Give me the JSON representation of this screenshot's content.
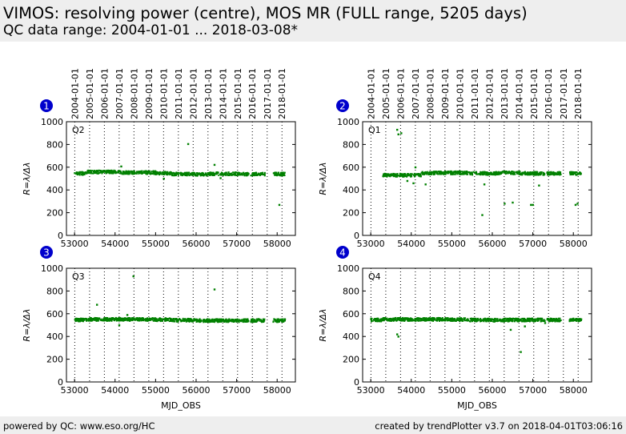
{
  "header": {
    "title": "VIMOS: resolving power (centre), MOS MR (FULL range, 5205 days)",
    "subtitle": "QC data range: 2004-01-01 ... 2018-03-08*"
  },
  "footer": {
    "left": "powered by QC: www.eso.org/HC",
    "right": "created by trendPlotter v3.7 on 2018-04-01T03:06:16"
  },
  "colors": {
    "data": "#008000",
    "badge": "#0000cc",
    "header_bg": "#eeeeee"
  },
  "chart_data": [
    {
      "type": "scatter",
      "panel": "1",
      "label": "Q2",
      "ylabel": "R=λ/Δλ",
      "xlabel": "",
      "xlim": [
        52800,
        58450
      ],
      "ylim": [
        0,
        1000
      ],
      "xticks": [
        53000,
        54000,
        55000,
        56000,
        57000,
        58000
      ],
      "yticks": [
        0,
        200,
        400,
        600,
        800,
        1000
      ],
      "date_ticks": [
        "2004-01-01",
        "2005-01-01",
        "2006-01-01",
        "2007-01-01",
        "2008-01-01",
        "2009-01-01",
        "2010-01-01",
        "2011-01-01",
        "2012-01-01",
        "2013-01-01",
        "2014-01-01",
        "2015-01-01",
        "2016-01-01",
        "2017-01-01",
        "2018-01-01"
      ],
      "date_mjd": [
        53005,
        53371,
        53736,
        54101,
        54466,
        54832,
        55197,
        55562,
        55927,
        56293,
        56658,
        57023,
        57388,
        57754,
        58119
      ],
      "bands": [
        [
          53000,
          53300,
          545
        ],
        [
          53300,
          54150,
          558
        ],
        [
          54150,
          54500,
          553
        ],
        [
          54500,
          55000,
          553
        ],
        [
          55000,
          55400,
          548
        ],
        [
          55400,
          55950,
          540
        ],
        [
          55950,
          56300,
          537
        ],
        [
          56300,
          57100,
          542
        ],
        [
          57100,
          57300,
          540
        ],
        [
          57350,
          57700,
          540
        ],
        [
          57900,
          58200,
          540
        ]
      ],
      "outliers": [
        [
          55800,
          805
        ],
        [
          54150,
          608
        ],
        [
          56450,
          622
        ],
        [
          55200,
          500
        ],
        [
          56600,
          505
        ],
        [
          58050,
          270
        ]
      ]
    },
    {
      "type": "scatter",
      "panel": "2",
      "label": "Q1",
      "ylabel": "R=λ/Δλ",
      "xlabel": "",
      "xlim": [
        52800,
        58450
      ],
      "ylim": [
        0,
        1000
      ],
      "xticks": [
        53000,
        54000,
        55000,
        56000,
        57000,
        58000
      ],
      "yticks": [
        0,
        200,
        400,
        600,
        800,
        1000
      ],
      "date_ticks": [
        "2004-01-01",
        "2005-01-01",
        "2006-01-01",
        "2007-01-01",
        "2008-01-01",
        "2009-01-01",
        "2010-01-01",
        "2011-01-01",
        "2012-01-01",
        "2013-01-01",
        "2014-01-01",
        "2015-01-01",
        "2016-01-01",
        "2017-01-01",
        "2018-01-01"
      ],
      "date_mjd": [
        53005,
        53371,
        53736,
        54101,
        54466,
        54832,
        55197,
        55562,
        55927,
        56293,
        56658,
        57023,
        57388,
        57754,
        58119
      ],
      "bands": [
        [
          53300,
          54250,
          530
        ],
        [
          54250,
          54500,
          548
        ],
        [
          54500,
          55400,
          550
        ],
        [
          55400,
          56200,
          545
        ],
        [
          56200,
          56700,
          550
        ],
        [
          56700,
          57300,
          545
        ],
        [
          57350,
          57700,
          545
        ],
        [
          57900,
          58200,
          545
        ]
      ],
      "outliers": [
        [
          53650,
          930
        ],
        [
          53680,
          890
        ],
        [
          53750,
          900
        ],
        [
          54100,
          600
        ],
        [
          54050,
          460
        ],
        [
          53900,
          480
        ],
        [
          54350,
          450
        ],
        [
          55750,
          180
        ],
        [
          55800,
          450
        ],
        [
          56300,
          280
        ],
        [
          56500,
          290
        ],
        [
          56950,
          270
        ],
        [
          57000,
          270
        ],
        [
          57150,
          440
        ],
        [
          58050,
          270
        ],
        [
          58100,
          280
        ]
      ]
    },
    {
      "type": "scatter",
      "panel": "3",
      "label": "Q3",
      "ylabel": "R=λ/Δλ",
      "xlabel": "MJD_OBS",
      "xlim": [
        52800,
        58450
      ],
      "ylim": [
        0,
        1000
      ],
      "xticks": [
        53000,
        54000,
        55000,
        56000,
        57000,
        58000
      ],
      "yticks": [
        0,
        200,
        400,
        600,
        800,
        1000
      ],
      "bands": [
        [
          53000,
          53300,
          545
        ],
        [
          53300,
          54200,
          550
        ],
        [
          54200,
          54500,
          550
        ],
        [
          54500,
          55000,
          550
        ],
        [
          55000,
          55400,
          548
        ],
        [
          55400,
          55950,
          543
        ],
        [
          55950,
          56300,
          540
        ],
        [
          56300,
          57100,
          540
        ],
        [
          57100,
          57300,
          540
        ],
        [
          57350,
          57700,
          540
        ],
        [
          57900,
          58200,
          540
        ]
      ],
      "outliers": [
        [
          53550,
          680
        ],
        [
          54450,
          930
        ],
        [
          56450,
          815
        ],
        [
          54100,
          500
        ],
        [
          54300,
          590
        ]
      ]
    },
    {
      "type": "scatter",
      "panel": "4",
      "label": "Q4",
      "ylabel": "R=λ/Δλ",
      "xlabel": "MJD_OBS",
      "xlim": [
        52800,
        58450
      ],
      "ylim": [
        0,
        1000
      ],
      "xticks": [
        53000,
        54000,
        55000,
        56000,
        57000,
        58000
      ],
      "yticks": [
        0,
        200,
        400,
        600,
        800,
        1000
      ],
      "bands": [
        [
          53000,
          53300,
          545
        ],
        [
          53300,
          54100,
          550
        ],
        [
          54100,
          54500,
          550
        ],
        [
          54500,
          55000,
          550
        ],
        [
          55000,
          55400,
          548
        ],
        [
          55400,
          55950,
          545
        ],
        [
          55950,
          56300,
          543
        ],
        [
          56300,
          57100,
          545
        ],
        [
          57100,
          57300,
          545
        ],
        [
          57350,
          57700,
          545
        ],
        [
          57900,
          58200,
          545
        ]
      ],
      "outliers": [
        [
          53650,
          420
        ],
        [
          53680,
          400
        ],
        [
          56450,
          460
        ],
        [
          56700,
          265
        ],
        [
          56800,
          490
        ],
        [
          57300,
          520
        ]
      ]
    }
  ]
}
